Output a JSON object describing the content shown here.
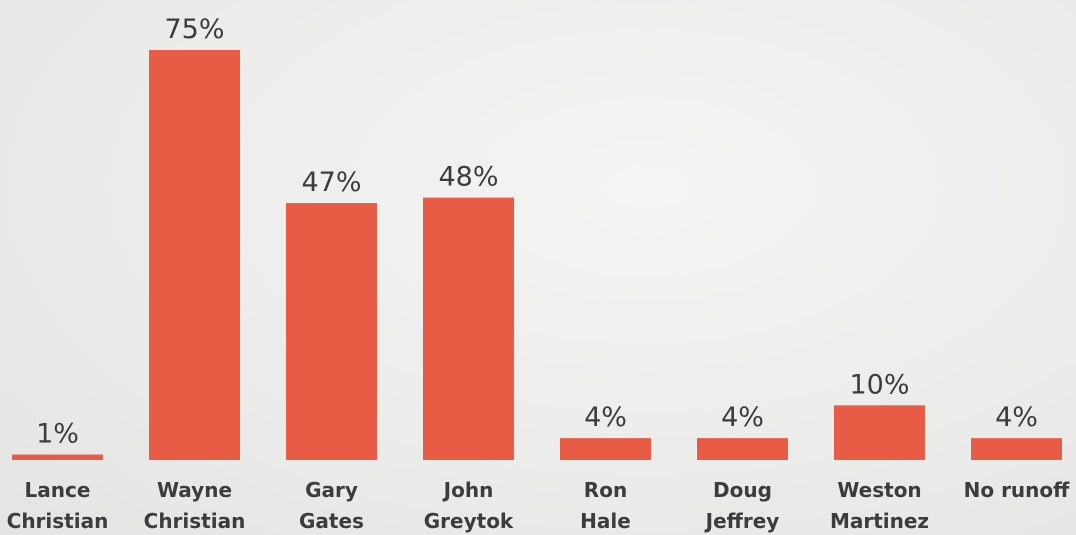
{
  "chart_data": {
    "type": "bar",
    "categories": [
      [
        "Lance",
        "Christian"
      ],
      [
        "Wayne",
        "Christian"
      ],
      [
        "Gary",
        "Gates"
      ],
      [
        "John",
        "Greytok"
      ],
      [
        "Ron",
        "Hale"
      ],
      [
        "Doug",
        "Jeffrey"
      ],
      [
        "Weston",
        "Martinez"
      ],
      [
        "No runoff"
      ]
    ],
    "values": [
      1,
      75,
      47,
      48,
      4,
      4,
      10,
      4
    ],
    "value_labels": [
      "1%",
      "75%",
      "47%",
      "48%",
      "4%",
      "4%",
      "10%",
      "4%"
    ],
    "unit": "%",
    "ylim": [
      0,
      75
    ],
    "grid": false,
    "legend": "none",
    "title": "",
    "xlabel": "",
    "ylabel": ""
  },
  "colors": {
    "bar": "#e85b45",
    "text": "#3c3c3c",
    "background": "#ececeb"
  }
}
